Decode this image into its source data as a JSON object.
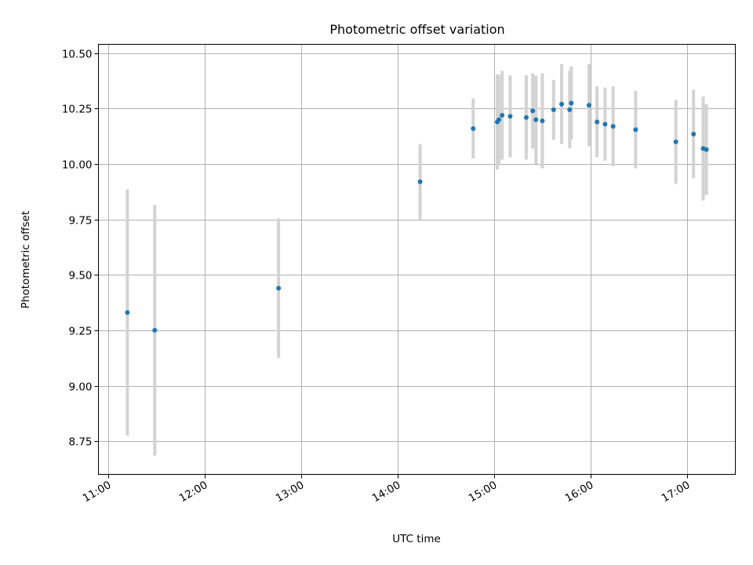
{
  "chart_data": {
    "type": "scatter",
    "title": "Photometric offset variation",
    "xlabel": "UTC time",
    "ylabel": "Photometric offset",
    "grid": true,
    "xlim": [
      "10:54",
      "17:30"
    ],
    "ylim": [
      8.6,
      10.54
    ],
    "xticks": [
      "11:00",
      "12:00",
      "13:00",
      "14:00",
      "15:00",
      "16:00",
      "17:00"
    ],
    "yticks": [
      "8.75",
      "9.00",
      "9.25",
      "9.50",
      "9.75",
      "10.00",
      "10.25",
      "10.50"
    ],
    "point_color": "#1f77b4",
    "errorbar_color": "#d3d3d3",
    "points": [
      {
        "x": "11:12",
        "y": 9.33,
        "err": 0.555
      },
      {
        "x": "11:29",
        "y": 9.25,
        "err": 0.565
      },
      {
        "x": "12:46",
        "y": 9.44,
        "err": 0.315
      },
      {
        "x": "14:14",
        "y": 9.92,
        "err": 0.17
      },
      {
        "x": "14:47",
        "y": 10.16,
        "err": 0.135
      },
      {
        "x": "15:02",
        "y": 10.19,
        "err": 0.215
      },
      {
        "x": "15:03",
        "y": 10.2,
        "err": 0.2
      },
      {
        "x": "15:05",
        "y": 10.22,
        "err": 0.2
      },
      {
        "x": "15:10",
        "y": 10.215,
        "err": 0.185
      },
      {
        "x": "15:20",
        "y": 10.21,
        "err": 0.19
      },
      {
        "x": "15:24",
        "y": 10.24,
        "err": 0.17
      },
      {
        "x": "15:26",
        "y": 10.2,
        "err": 0.2
      },
      {
        "x": "15:30",
        "y": 10.195,
        "err": 0.215
      },
      {
        "x": "15:37",
        "y": 10.245,
        "err": 0.135
      },
      {
        "x": "15:42",
        "y": 10.27,
        "err": 0.18
      },
      {
        "x": "15:47",
        "y": 10.245,
        "err": 0.175
      },
      {
        "x": "15:48",
        "y": 10.275,
        "err": 0.165
      },
      {
        "x": "15:59",
        "y": 10.265,
        "err": 0.185
      },
      {
        "x": "16:04",
        "y": 10.19,
        "err": 0.16
      },
      {
        "x": "16:09",
        "y": 10.18,
        "err": 0.165
      },
      {
        "x": "16:14",
        "y": 10.17,
        "err": 0.18
      },
      {
        "x": "16:28",
        "y": 10.155,
        "err": 0.175
      },
      {
        "x": "16:53",
        "y": 10.1,
        "err": 0.19
      },
      {
        "x": "17:04",
        "y": 10.135,
        "err": 0.2
      },
      {
        "x": "17:10",
        "y": 10.07,
        "err": 0.235
      },
      {
        "x": "17:12",
        "y": 10.065,
        "err": 0.205
      }
    ]
  }
}
